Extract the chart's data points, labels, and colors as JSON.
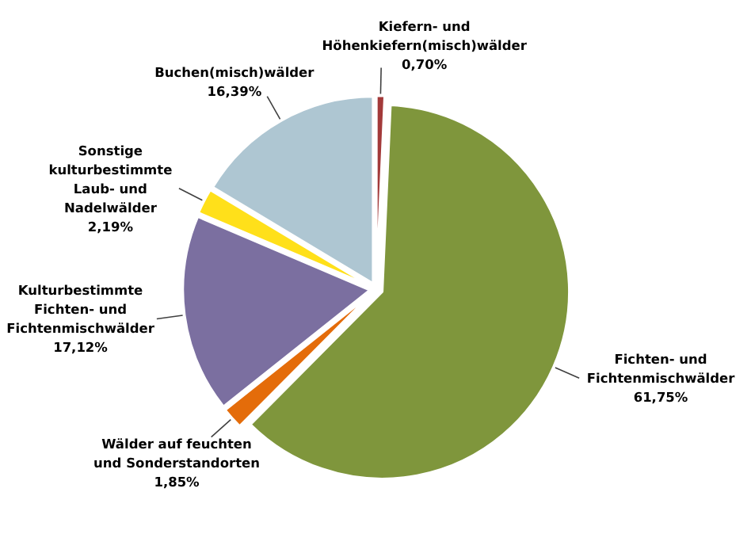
{
  "chart_data": {
    "type": "pie",
    "categories": [
      "Kiefern- und Höhenkiefern(misch)wälder",
      "Fichten- und Fichtenmischwälder",
      "Wälder auf feuchten und Sonderstandorten",
      "Kulturbestimmte Fichten- und Fichtenmischwälder",
      "Sonstige kulturbestimmte Laub- und Nadelwälder",
      "Buchen(misch)wälder"
    ],
    "values": [
      0.7,
      61.75,
      1.85,
      17.12,
      2.19,
      16.39
    ],
    "colors": [
      "#a33a3a",
      "#7f963c",
      "#e46c0a",
      "#7b6fa0",
      "#ffe01a",
      "#aec6d2"
    ],
    "value_labels": [
      "0,70%",
      "61,75%",
      "1,85%",
      "17,12%",
      "2,19%",
      "16,39%"
    ],
    "legend": false
  }
}
